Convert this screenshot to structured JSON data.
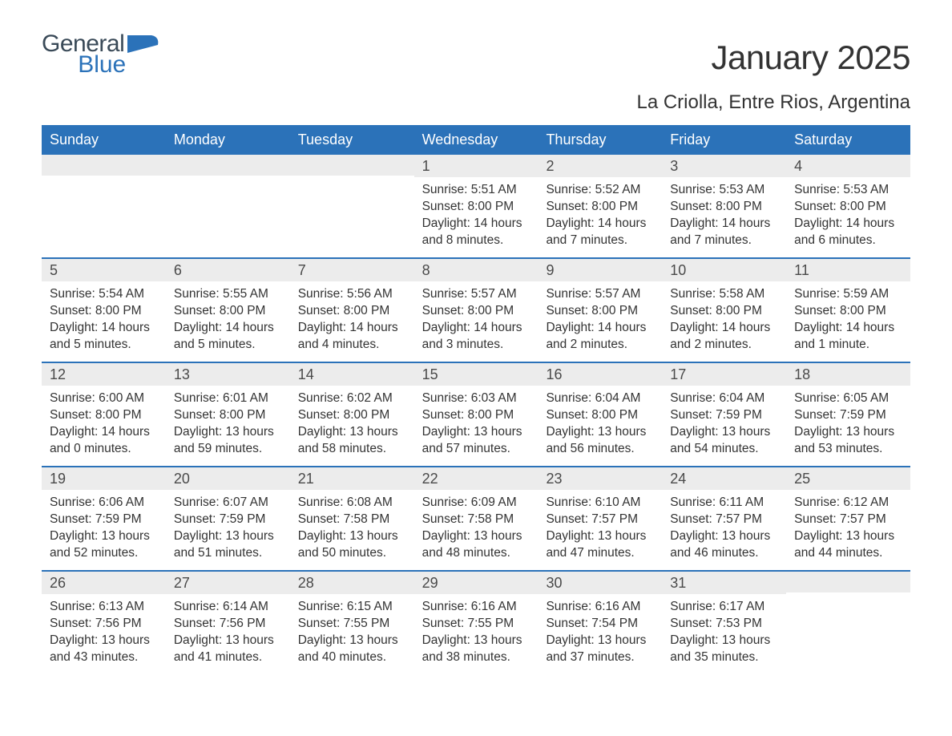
{
  "logo": {
    "word1": "General",
    "word2": "Blue",
    "shape_color": "#2b72b9",
    "word1_color": "#3a4a58",
    "word2_color": "#2b72b9"
  },
  "title": "January 2025",
  "subtitle": "La Criolla, Entre Rios, Argentina",
  "colors": {
    "header_bg": "#2b72b9",
    "header_text": "#ffffff",
    "daynum_bg": "#ececec",
    "daynum_text": "#4a4a4a",
    "body_text": "#333333",
    "divider": "#2b72b9",
    "page_bg": "#ffffff"
  },
  "day_headers": [
    "Sunday",
    "Monday",
    "Tuesday",
    "Wednesday",
    "Thursday",
    "Friday",
    "Saturday"
  ],
  "weeks": [
    [
      {
        "empty": true
      },
      {
        "empty": true
      },
      {
        "empty": true
      },
      {
        "n": "1",
        "sunrise": "Sunrise: 5:51 AM",
        "sunset": "Sunset: 8:00 PM",
        "dl1": "Daylight: 14 hours",
        "dl2": "and 8 minutes."
      },
      {
        "n": "2",
        "sunrise": "Sunrise: 5:52 AM",
        "sunset": "Sunset: 8:00 PM",
        "dl1": "Daylight: 14 hours",
        "dl2": "and 7 minutes."
      },
      {
        "n": "3",
        "sunrise": "Sunrise: 5:53 AM",
        "sunset": "Sunset: 8:00 PM",
        "dl1": "Daylight: 14 hours",
        "dl2": "and 7 minutes."
      },
      {
        "n": "4",
        "sunrise": "Sunrise: 5:53 AM",
        "sunset": "Sunset: 8:00 PM",
        "dl1": "Daylight: 14 hours",
        "dl2": "and 6 minutes."
      }
    ],
    [
      {
        "n": "5",
        "sunrise": "Sunrise: 5:54 AM",
        "sunset": "Sunset: 8:00 PM",
        "dl1": "Daylight: 14 hours",
        "dl2": "and 5 minutes."
      },
      {
        "n": "6",
        "sunrise": "Sunrise: 5:55 AM",
        "sunset": "Sunset: 8:00 PM",
        "dl1": "Daylight: 14 hours",
        "dl2": "and 5 minutes."
      },
      {
        "n": "7",
        "sunrise": "Sunrise: 5:56 AM",
        "sunset": "Sunset: 8:00 PM",
        "dl1": "Daylight: 14 hours",
        "dl2": "and 4 minutes."
      },
      {
        "n": "8",
        "sunrise": "Sunrise: 5:57 AM",
        "sunset": "Sunset: 8:00 PM",
        "dl1": "Daylight: 14 hours",
        "dl2": "and 3 minutes."
      },
      {
        "n": "9",
        "sunrise": "Sunrise: 5:57 AM",
        "sunset": "Sunset: 8:00 PM",
        "dl1": "Daylight: 14 hours",
        "dl2": "and 2 minutes."
      },
      {
        "n": "10",
        "sunrise": "Sunrise: 5:58 AM",
        "sunset": "Sunset: 8:00 PM",
        "dl1": "Daylight: 14 hours",
        "dl2": "and 2 minutes."
      },
      {
        "n": "11",
        "sunrise": "Sunrise: 5:59 AM",
        "sunset": "Sunset: 8:00 PM",
        "dl1": "Daylight: 14 hours",
        "dl2": "and 1 minute."
      }
    ],
    [
      {
        "n": "12",
        "sunrise": "Sunrise: 6:00 AM",
        "sunset": "Sunset: 8:00 PM",
        "dl1": "Daylight: 14 hours",
        "dl2": "and 0 minutes."
      },
      {
        "n": "13",
        "sunrise": "Sunrise: 6:01 AM",
        "sunset": "Sunset: 8:00 PM",
        "dl1": "Daylight: 13 hours",
        "dl2": "and 59 minutes."
      },
      {
        "n": "14",
        "sunrise": "Sunrise: 6:02 AM",
        "sunset": "Sunset: 8:00 PM",
        "dl1": "Daylight: 13 hours",
        "dl2": "and 58 minutes."
      },
      {
        "n": "15",
        "sunrise": "Sunrise: 6:03 AM",
        "sunset": "Sunset: 8:00 PM",
        "dl1": "Daylight: 13 hours",
        "dl2": "and 57 minutes."
      },
      {
        "n": "16",
        "sunrise": "Sunrise: 6:04 AM",
        "sunset": "Sunset: 8:00 PM",
        "dl1": "Daylight: 13 hours",
        "dl2": "and 56 minutes."
      },
      {
        "n": "17",
        "sunrise": "Sunrise: 6:04 AM",
        "sunset": "Sunset: 7:59 PM",
        "dl1": "Daylight: 13 hours",
        "dl2": "and 54 minutes."
      },
      {
        "n": "18",
        "sunrise": "Sunrise: 6:05 AM",
        "sunset": "Sunset: 7:59 PM",
        "dl1": "Daylight: 13 hours",
        "dl2": "and 53 minutes."
      }
    ],
    [
      {
        "n": "19",
        "sunrise": "Sunrise: 6:06 AM",
        "sunset": "Sunset: 7:59 PM",
        "dl1": "Daylight: 13 hours",
        "dl2": "and 52 minutes."
      },
      {
        "n": "20",
        "sunrise": "Sunrise: 6:07 AM",
        "sunset": "Sunset: 7:59 PM",
        "dl1": "Daylight: 13 hours",
        "dl2": "and 51 minutes."
      },
      {
        "n": "21",
        "sunrise": "Sunrise: 6:08 AM",
        "sunset": "Sunset: 7:58 PM",
        "dl1": "Daylight: 13 hours",
        "dl2": "and 50 minutes."
      },
      {
        "n": "22",
        "sunrise": "Sunrise: 6:09 AM",
        "sunset": "Sunset: 7:58 PM",
        "dl1": "Daylight: 13 hours",
        "dl2": "and 48 minutes."
      },
      {
        "n": "23",
        "sunrise": "Sunrise: 6:10 AM",
        "sunset": "Sunset: 7:57 PM",
        "dl1": "Daylight: 13 hours",
        "dl2": "and 47 minutes."
      },
      {
        "n": "24",
        "sunrise": "Sunrise: 6:11 AM",
        "sunset": "Sunset: 7:57 PM",
        "dl1": "Daylight: 13 hours",
        "dl2": "and 46 minutes."
      },
      {
        "n": "25",
        "sunrise": "Sunrise: 6:12 AM",
        "sunset": "Sunset: 7:57 PM",
        "dl1": "Daylight: 13 hours",
        "dl2": "and 44 minutes."
      }
    ],
    [
      {
        "n": "26",
        "sunrise": "Sunrise: 6:13 AM",
        "sunset": "Sunset: 7:56 PM",
        "dl1": "Daylight: 13 hours",
        "dl2": "and 43 minutes."
      },
      {
        "n": "27",
        "sunrise": "Sunrise: 6:14 AM",
        "sunset": "Sunset: 7:56 PM",
        "dl1": "Daylight: 13 hours",
        "dl2": "and 41 minutes."
      },
      {
        "n": "28",
        "sunrise": "Sunrise: 6:15 AM",
        "sunset": "Sunset: 7:55 PM",
        "dl1": "Daylight: 13 hours",
        "dl2": "and 40 minutes."
      },
      {
        "n": "29",
        "sunrise": "Sunrise: 6:16 AM",
        "sunset": "Sunset: 7:55 PM",
        "dl1": "Daylight: 13 hours",
        "dl2": "and 38 minutes."
      },
      {
        "n": "30",
        "sunrise": "Sunrise: 6:16 AM",
        "sunset": "Sunset: 7:54 PM",
        "dl1": "Daylight: 13 hours",
        "dl2": "and 37 minutes."
      },
      {
        "n": "31",
        "sunrise": "Sunrise: 6:17 AM",
        "sunset": "Sunset: 7:53 PM",
        "dl1": "Daylight: 13 hours",
        "dl2": "and 35 minutes."
      },
      {
        "empty": true
      }
    ]
  ]
}
